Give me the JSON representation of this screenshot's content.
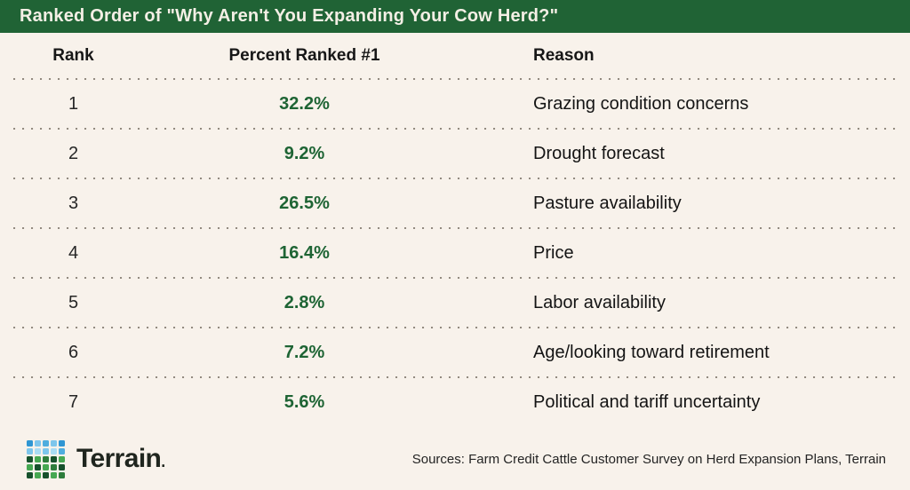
{
  "title": "Ranked Order of \"Why Aren't You Expanding Your Cow Herd?\"",
  "table": {
    "headers": {
      "rank": "Rank",
      "percent": "Percent Ranked #1",
      "reason": "Reason"
    },
    "rows": [
      {
        "rank": "1",
        "percent": "32.2%",
        "reason": "Grazing condition concerns"
      },
      {
        "rank": "2",
        "percent": "9.2%",
        "reason": "Drought forecast"
      },
      {
        "rank": "3",
        "percent": "26.5%",
        "reason": "Pasture availability"
      },
      {
        "rank": "4",
        "percent": "16.4%",
        "reason": "Price"
      },
      {
        "rank": "5",
        "percent": "2.8%",
        "reason": "Labor availability"
      },
      {
        "rank": "6",
        "percent": "7.2%",
        "reason": "Age/looking toward retirement"
      },
      {
        "rank": "7",
        "percent": "5.6%",
        "reason": "Political and tariff uncertainty"
      }
    ]
  },
  "footer": {
    "logo_text": "Terrain",
    "logo_period": ".",
    "sources": "Sources: Farm Credit Cattle Customer Survey on Herd Expansion Plans, Terrain"
  },
  "colors": {
    "header_bg": "#206335",
    "header_text": "#f4efe5",
    "background": "#f8f2eb",
    "percent_green": "#1e6434",
    "dot_separator": "#8d857b",
    "logo_grid": [
      [
        "#2f96d3",
        "#7ec6ec",
        "#4fadde",
        "#7ec6ec",
        "#2f96d3"
      ],
      [
        "#7ec6ec",
        "#a9dcf4",
        "#7ec6ec",
        "#a9dcf4",
        "#4fadde"
      ],
      [
        "#16512c",
        "#46a852",
        "#2e7d3c",
        "#16512c",
        "#46a852"
      ],
      [
        "#46a852",
        "#16512c",
        "#46a852",
        "#2e7d3c",
        "#16512c"
      ],
      [
        "#16512c",
        "#46a852",
        "#16512c",
        "#46a852",
        "#2e7d3c"
      ]
    ]
  },
  "chart_data": {
    "type": "table",
    "title": "Ranked Order of \"Why Aren't You Expanding Your Cow Herd?\"",
    "columns": [
      "Rank",
      "Percent Ranked #1",
      "Reason"
    ],
    "rows": [
      [
        1,
        32.2,
        "Grazing condition concerns"
      ],
      [
        2,
        9.2,
        "Drought forecast"
      ],
      [
        3,
        26.5,
        "Pasture availability"
      ],
      [
        4,
        16.4,
        "Price"
      ],
      [
        5,
        2.8,
        "Labor availability"
      ],
      [
        6,
        7.2,
        "Age/looking toward retirement"
      ],
      [
        7,
        5.6,
        "Political and tariff uncertainty"
      ]
    ],
    "value_unit": "percent",
    "source": "Sources: Farm Credit Cattle Customer Survey on Herd Expansion Plans, Terrain"
  }
}
